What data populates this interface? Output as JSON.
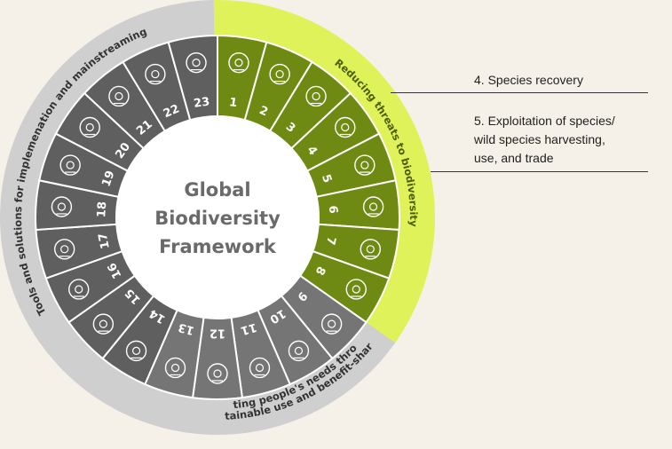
{
  "colors": {
    "background": "#f6f1e8",
    "green_band": "#dff25a",
    "green_segment": "#6f8a12",
    "dark_segment": "#5f5f5f",
    "mid_segment": "#757575",
    "grey_band": "#cfcfcf",
    "center_text": "#6a6a6a"
  },
  "center": {
    "line1": "Global",
    "line2": "Biodiversity",
    "line3": "Framework"
  },
  "bands": {
    "threats": "Reducing threats to biodiversity",
    "needs_line1": "Meeting people's needs through",
    "needs_line2": "sustainable use and benefit-sharing",
    "tools": "Tools and solutions for implemenation and mainstreaming"
  },
  "segments": [
    {
      "num": "1",
      "icon": "puzzle-icon",
      "group": "threats"
    },
    {
      "num": "2",
      "icon": "forest-sun-icon",
      "group": "threats"
    },
    {
      "num": "3",
      "icon": "hands-leaf-icon",
      "group": "threats"
    },
    {
      "num": "4",
      "icon": "bison-icon",
      "group": "threats"
    },
    {
      "num": "5",
      "icon": "tree-dollar-icon",
      "group": "threats"
    },
    {
      "num": "6",
      "icon": "tick-bug-icon",
      "group": "threats"
    },
    {
      "num": "7",
      "icon": "bottle-waves-icon",
      "group": "threats"
    },
    {
      "num": "8",
      "icon": "globe-thermometer-icon",
      "group": "threats"
    },
    {
      "num": "9",
      "icon": "butterfly-icon",
      "group": "needs"
    },
    {
      "num": "10",
      "icon": "fish-icon",
      "group": "needs"
    },
    {
      "num": "11",
      "icon": "hand-plant-icon",
      "group": "needs"
    },
    {
      "num": "12",
      "icon": "city-buildings-icon",
      "group": "needs"
    },
    {
      "num": "13",
      "icon": "circuit-leaf-icon",
      "group": "needs"
    },
    {
      "num": "14",
      "icon": "clipboard-checklist-icon",
      "group": "tools"
    },
    {
      "num": "15",
      "icon": "chart-magnifier-icon",
      "group": "tools"
    },
    {
      "num": "16",
      "icon": "lightbulb-icon",
      "group": "tools"
    },
    {
      "num": "17",
      "icon": "people-screen-icon",
      "group": "tools"
    },
    {
      "num": "18",
      "icon": "eye-icon",
      "group": "tools"
    },
    {
      "num": "19",
      "icon": "hand-moneybag-icon",
      "group": "tools"
    },
    {
      "num": "20",
      "icon": "handshake-icon",
      "group": "tools"
    },
    {
      "num": "21",
      "icon": "people-network-icon",
      "group": "tools"
    },
    {
      "num": "22",
      "icon": "raised-hands-icon",
      "group": "tools"
    },
    {
      "num": "23",
      "icon": "target-arrows-icon",
      "group": "tools"
    }
  ],
  "notes": [
    {
      "lines": [
        "4. Species recovery"
      ]
    },
    {
      "lines": [
        "5. Exploitation of species/",
        "wild species harvesting,",
        "use, and trade"
      ]
    }
  ]
}
